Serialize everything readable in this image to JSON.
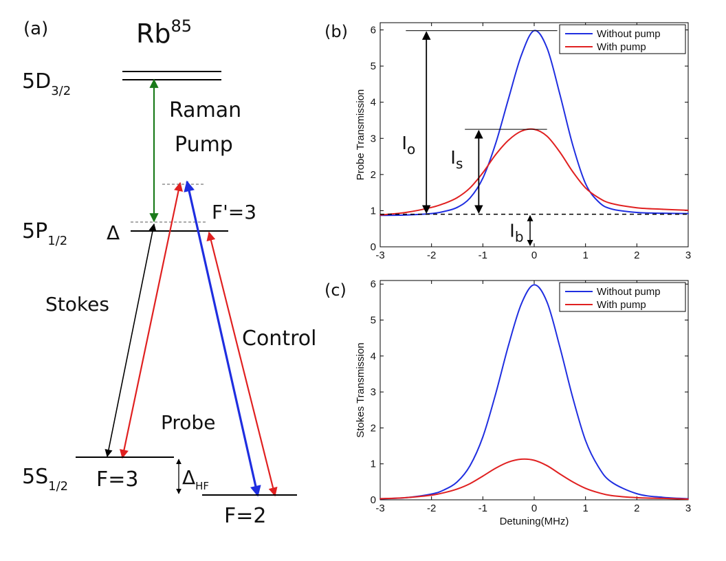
{
  "panel_a": {
    "panel_label": "(a)",
    "atom": {
      "base": "Rb",
      "sup": "85"
    },
    "levels": {
      "d": {
        "base": "5D",
        "sub": "3/2"
      },
      "p": {
        "base": "5P",
        "sub": "1/2"
      },
      "s": {
        "base": "5S",
        "sub": "1/2"
      }
    },
    "labels": {
      "delta": "Δ",
      "fprime": "F'=3",
      "raman_line1": "Raman",
      "raman_line2": "Pump",
      "stokes": "Stokes",
      "control": "Control",
      "probe": "Probe",
      "f3": "F=3",
      "f2": "F=2",
      "delta_hf": {
        "base": "Δ",
        "sub": "HF"
      }
    },
    "colors": {
      "raman": "#1a7a1a",
      "stokes": "#000000",
      "probe": "#e02020",
      "control": "#e02020",
      "probe_blue": "#1f2ee0"
    }
  },
  "chart_data": [
    {
      "panel_label": "(b)",
      "type": "line",
      "xlabel": "",
      "ylabel": "Probe Transmission",
      "xlim": [
        -3,
        3
      ],
      "ylim": [
        0,
        6.2
      ],
      "xticks": [
        -3,
        -2,
        -1,
        0,
        1,
        2,
        3
      ],
      "yticks": [
        0,
        1,
        2,
        3,
        4,
        5,
        6
      ],
      "grid": false,
      "legend": "top-right",
      "x": [
        -3,
        -2.5,
        -2,
        -1.75,
        -1.5,
        -1.25,
        -1,
        -0.75,
        -0.5,
        -0.25,
        0,
        0.25,
        0.5,
        0.75,
        1,
        1.25,
        1.5,
        2,
        2.5,
        3
      ],
      "series": [
        {
          "name": "Without pump",
          "color": "#1f2ee0",
          "values": [
            0.87,
            0.88,
            0.92,
            0.98,
            1.09,
            1.35,
            1.9,
            2.86,
            4.1,
            5.3,
            5.98,
            5.5,
            4.22,
            2.82,
            1.75,
            1.25,
            1.05,
            0.95,
            0.93,
            0.92
          ]
        },
        {
          "name": "With pump",
          "color": "#e02020",
          "values": [
            0.88,
            0.95,
            1.09,
            1.2,
            1.36,
            1.63,
            2.05,
            2.55,
            2.95,
            3.2,
            3.25,
            3.06,
            2.62,
            2.08,
            1.63,
            1.36,
            1.2,
            1.08,
            1.04,
            1.01
          ]
        }
      ],
      "annotations": {
        "baseline_y": 0.9,
        "peak_without": 5.98,
        "peak_with": 3.25,
        "label_o": {
          "base": "I",
          "sub": "o"
        },
        "label_s": {
          "base": "I",
          "sub": "s"
        },
        "label_b": {
          "base": "I",
          "sub": "b"
        }
      }
    },
    {
      "panel_label": "(c)",
      "type": "line",
      "xlabel": "Detuning(MHz)",
      "ylabel": "Stokes Transmission",
      "xlim": [
        -3,
        3
      ],
      "ylim": [
        0,
        6.1
      ],
      "xticks": [
        -3,
        -2,
        -1,
        0,
        1,
        2,
        3
      ],
      "yticks": [
        0,
        1,
        2,
        3,
        4,
        5,
        6
      ],
      "grid": false,
      "legend": "top-right",
      "x": [
        -3,
        -2.5,
        -2,
        -1.75,
        -1.5,
        -1.25,
        -1,
        -0.75,
        -0.5,
        -0.25,
        0,
        0.25,
        0.5,
        0.75,
        1,
        1.25,
        1.5,
        2,
        2.5,
        3
      ],
      "series": [
        {
          "name": "Without pump",
          "color": "#1f2ee0",
          "values": [
            0.03,
            0.06,
            0.16,
            0.28,
            0.5,
            0.95,
            1.75,
            2.95,
            4.3,
            5.45,
            5.98,
            5.5,
            4.25,
            2.85,
            1.65,
            0.92,
            0.5,
            0.17,
            0.07,
            0.03
          ]
        },
        {
          "name": "With pump",
          "color": "#e02020",
          "values": [
            0.03,
            0.06,
            0.13,
            0.2,
            0.3,
            0.45,
            0.66,
            0.88,
            1.05,
            1.13,
            1.1,
            0.95,
            0.72,
            0.5,
            0.32,
            0.2,
            0.12,
            0.06,
            0.04,
            0.02
          ]
        }
      ]
    }
  ]
}
